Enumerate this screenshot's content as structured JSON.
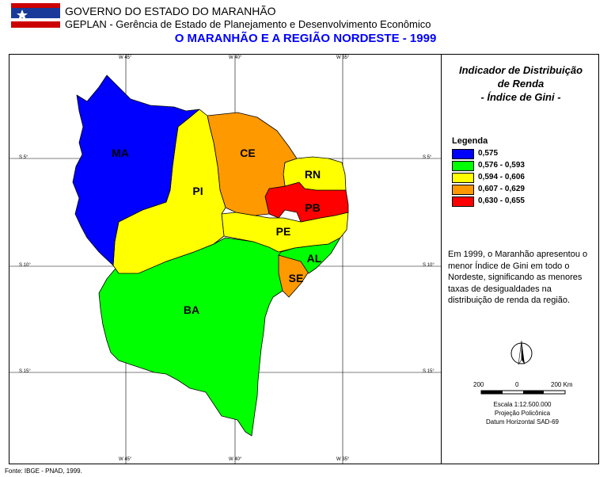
{
  "header": {
    "line1": "GOVERNO DO ESTADO DO MARANHÃO",
    "line2": "GEPLAN - Gerência de Estado de Planejamento e Desenvolvimento Econômico"
  },
  "map_title": "O MARANHÃO E A REGIÃO NORDESTE - 1999",
  "panel": {
    "title_lines": [
      "Indicador de Distribuição",
      "de Renda",
      "- Índice de Gini -"
    ]
  },
  "legend": {
    "title": "Legenda",
    "items": [
      {
        "label": "0,575",
        "color": "#0000ff"
      },
      {
        "label": "0,576 - 0,593",
        "color": "#00ff00"
      },
      {
        "label": "0,594 - 0,606",
        "color": "#ffff00"
      },
      {
        "label": "0,607 - 0,629",
        "color": "#ff9900"
      },
      {
        "label": "0,630 - 0,655",
        "color": "#ff0000"
      }
    ]
  },
  "description": "Em 1999, o Maranhão apresentou o menor Índice de Gini em todo o Nordeste, significando as menores taxas de desigualdades na distribuição de renda da região.",
  "states": [
    {
      "abbr": "MA",
      "color": "#0000ff"
    },
    {
      "abbr": "PI",
      "color": "#ffff00"
    },
    {
      "abbr": "CE",
      "color": "#ff9900"
    },
    {
      "abbr": "RN",
      "color": "#ffff00"
    },
    {
      "abbr": "PB",
      "color": "#ff0000"
    },
    {
      "abbr": "PE",
      "color": "#ffff00"
    },
    {
      "abbr": "AL",
      "color": "#00ff00"
    },
    {
      "abbr": "SE",
      "color": "#ff9900"
    },
    {
      "abbr": "BA",
      "color": "#00ff00"
    }
  ],
  "grid_labels": {
    "lon": [
      "W 45°",
      "W 40°",
      "W 35°"
    ],
    "lat": [
      "S 5°",
      "S 10°",
      "S 15°"
    ]
  },
  "scale": {
    "ticks": [
      "200",
      "0",
      "200 Km"
    ],
    "lines": [
      "Escala 1:12.500.000",
      "Projeção Policônica",
      "Datum Horizontal SAD-69"
    ]
  },
  "source": "Fonte: IBGE - PNAD, 1999."
}
